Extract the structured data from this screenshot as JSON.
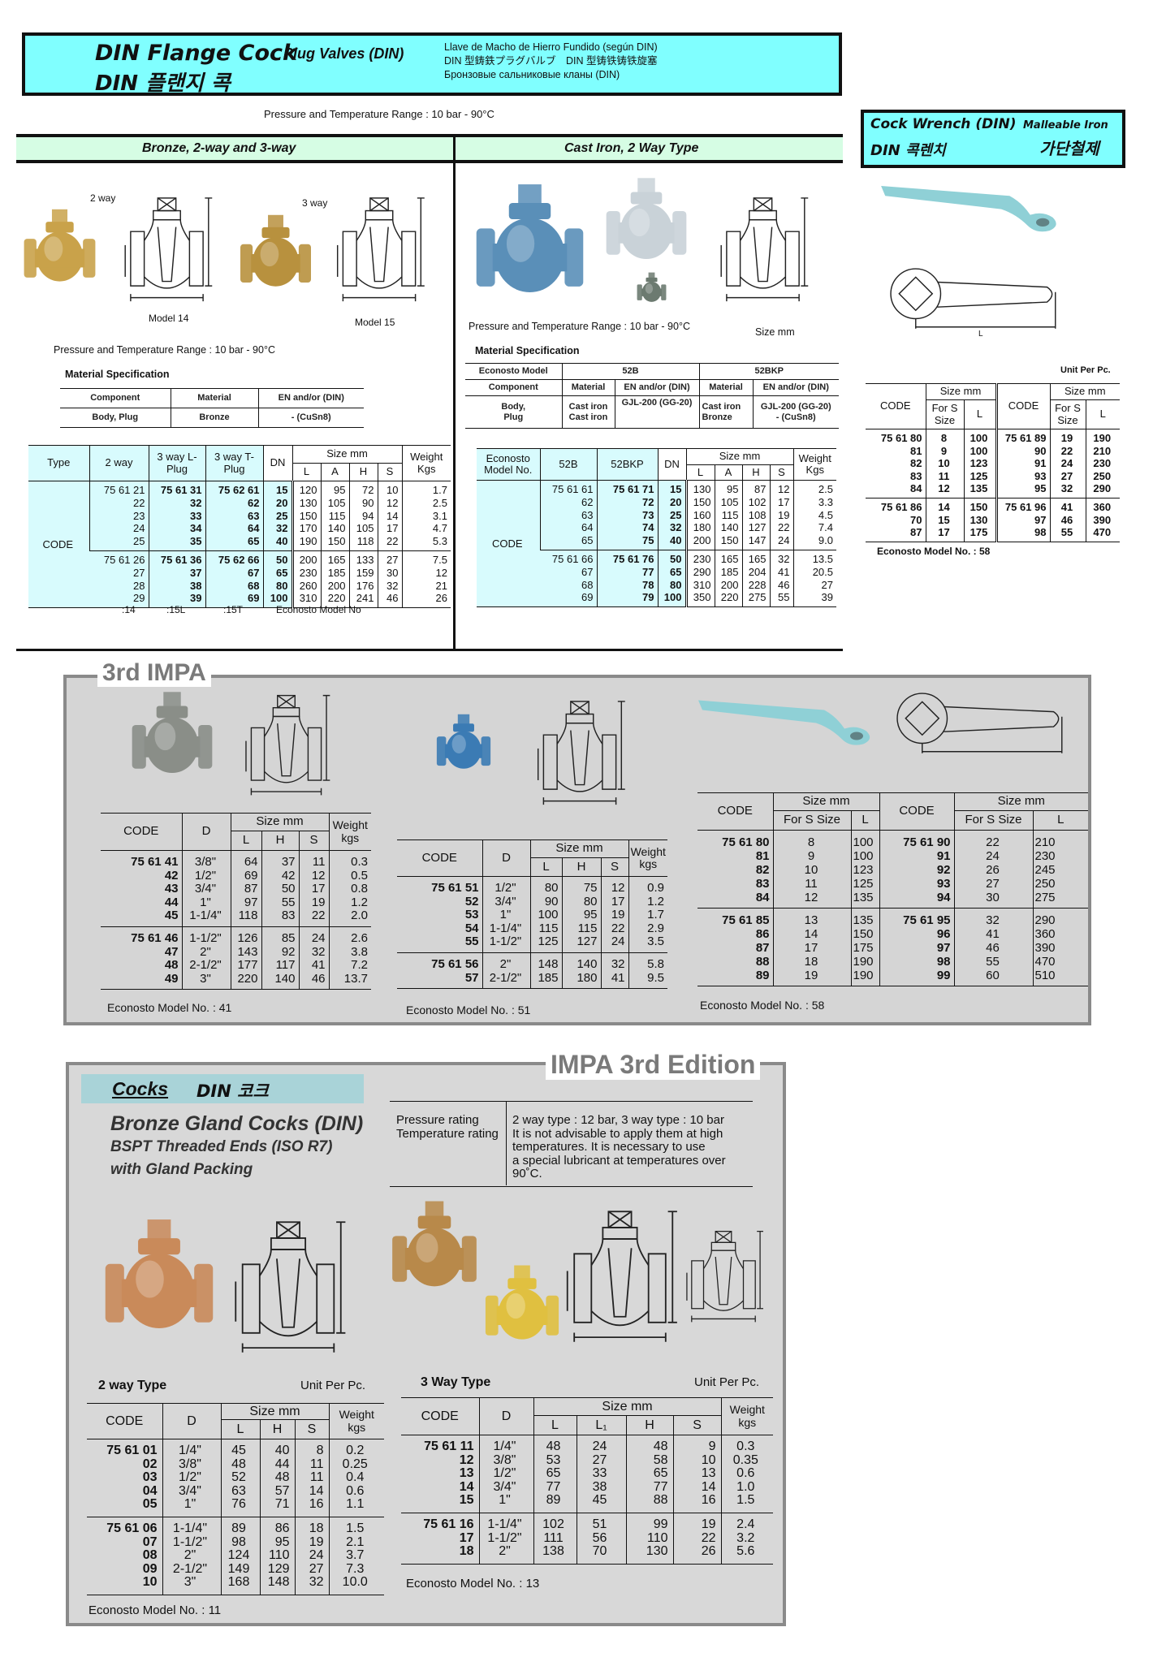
{
  "header": {
    "title_en": "DIN Flange Cock",
    "subtitle_en": "Plug Valves (DIN)",
    "title_ko": "DIN 플랜지 콕",
    "lines": [
      "Llave de Macho de Hierro Fundido (según DIN)",
      "DIN 型鋳鉄プラグバルブ　DIN 型铸铁铸铁旋塞",
      "Бронзовые сальниковые кланы (DIN)"
    ]
  },
  "pressure_range": "Pressure and Temperature Range : 10 bar - 90°C",
  "section_bar": {
    "left": "Bronze,     2-way and 3-way",
    "right": "Cast Iron,      2 Way Type"
  },
  "bronze": {
    "label_2way": "2 way",
    "label_3way": "3 way",
    "model_14": "Model 14",
    "model_15": "Model 15",
    "pressure": "Pressure and Temperature Range : 10 bar - 90°C",
    "material_title": "Material Specification",
    "material": {
      "headers": [
        "Component",
        "Material",
        "EN and/or (DIN)"
      ],
      "row": [
        "Body, Plug",
        "Bronze",
        "- (CuSn8)"
      ]
    },
    "table": {
      "headers": {
        "type": "Type",
        "two_way": "2 way",
        "l_plug": "3 way L-Plug",
        "t_plug": "3 way T-Plug",
        "dn": "DN",
        "size": "Size mm",
        "L": "L",
        "A": "A",
        "H": "H",
        "S": "S",
        "weight": "Weight Kgs"
      },
      "row_label": "CODE",
      "groups": [
        [
          [
            "75 61 21",
            "75 61 31",
            "75 62 61",
            "15",
            "120",
            "95",
            "72",
            "10",
            "1.7"
          ],
          [
            "22",
            "32",
            "62",
            "20",
            "130",
            "105",
            "90",
            "12",
            "2.5"
          ],
          [
            "23",
            "33",
            "63",
            "25",
            "150",
            "115",
            "94",
            "14",
            "3.1"
          ],
          [
            "24",
            "34",
            "64",
            "32",
            "170",
            "140",
            "105",
            "17",
            "4.7"
          ],
          [
            "25",
            "35",
            "65",
            "40",
            "190",
            "150",
            "118",
            "22",
            "5.3"
          ]
        ],
        [
          [
            "75 61 26",
            "75 61 36",
            "75 62 66",
            "50",
            "200",
            "165",
            "133",
            "27",
            "7.5"
          ],
          [
            "27",
            "37",
            "67",
            "65",
            "230",
            "185",
            "159",
            "30",
            "12"
          ],
          [
            "28",
            "38",
            "68",
            "80",
            "260",
            "200",
            "176",
            "32",
            "21"
          ],
          [
            "29",
            "39",
            "69",
            "100",
            "310",
            "220",
            "241",
            "46",
            "26"
          ]
        ]
      ],
      "footer": [
        ":14",
        ":15L",
        ":15T",
        "Econosto  Model No"
      ]
    }
  },
  "cast_iron": {
    "pressure": "Pressure and Temperature Range : 10 bar - 90°C",
    "size_note": "Size mm",
    "material_title": "Material Specification",
    "material": {
      "model_label": "Econosto Model",
      "models": [
        "52B",
        "52BKP"
      ],
      "component": "Component",
      "mat": "Material",
      "en": "EN and/or (DIN)",
      "row": {
        "component": "Body,\nPlug",
        "mat1": "Cast iron\nCast iron",
        "en1": "GJL-200 (GG-20)",
        "mat2": "Cast iron\nBronze",
        "en2": "GJL-200 (GG-20)\n- (CuSn8)"
      }
    },
    "table": {
      "headers": {
        "model": "Econosto Model  No.",
        "b": "52B",
        "bkp": "52BKP",
        "dn": "DN",
        "size": "Size mm",
        "L": "L",
        "A": "A",
        "H": "H",
        "S": "S",
        "weight": "Weight Kgs"
      },
      "row_label": "CODE",
      "groups": [
        [
          [
            "75 61 61",
            "75 61 71",
            "15",
            "130",
            "95",
            "87",
            "12",
            "2.5"
          ],
          [
            "62",
            "72",
            "20",
            "150",
            "105",
            "102",
            "17",
            "3.3"
          ],
          [
            "63",
            "73",
            "25",
            "160",
            "115",
            "108",
            "19",
            "4.5"
          ],
          [
            "64",
            "74",
            "32",
            "180",
            "140",
            "127",
            "22",
            "7.4"
          ],
          [
            "65",
            "75",
            "40",
            "200",
            "150",
            "147",
            "24",
            "9.0"
          ]
        ],
        [
          [
            "75 61 66",
            "75 61 76",
            "50",
            "230",
            "165",
            "165",
            "32",
            "13.5"
          ],
          [
            "67",
            "77",
            "65",
            "290",
            "185",
            "204",
            "41",
            "20.5"
          ],
          [
            "68",
            "78",
            "80",
            "310",
            "200",
            "228",
            "46",
            "27"
          ],
          [
            "69",
            "79",
            "100",
            "350",
            "220",
            "275",
            "55",
            "39"
          ]
        ]
      ]
    }
  },
  "wrench": {
    "title_en": "Cock Wrench (DIN)",
    "material_en": "Malleable Iron",
    "title_ko": "DIN 콕렌치",
    "material_ko": "가단철제",
    "dim_L": "L",
    "unit": "Unit Per Pc.",
    "headers": {
      "code": "CODE",
      "size": "Size mm",
      "for_s": "For S Size",
      "L": "L"
    },
    "groups": [
      [
        [
          "75 61 80",
          "8",
          "100",
          "75 61 89",
          "19",
          "190"
        ],
        [
          "81",
          "9",
          "100",
          "90",
          "22",
          "210"
        ],
        [
          "82",
          "10",
          "123",
          "91",
          "24",
          "230"
        ],
        [
          "83",
          "11",
          "125",
          "93",
          "27",
          "250"
        ],
        [
          "84",
          "12",
          "135",
          "95",
          "32",
          "290"
        ]
      ],
      [
        [
          "75 61 86",
          "14",
          "150",
          "75 61 96",
          "41",
          "360"
        ],
        [
          "70",
          "15",
          "130",
          "97",
          "46",
          "390"
        ],
        [
          "87",
          "17",
          "175",
          "98",
          "55",
          "470"
        ]
      ]
    ],
    "footer": "Econosto Model No. : 58"
  },
  "impa3": {
    "label": "3rd IMPA",
    "table_a": {
      "headers": {
        "code": "CODE",
        "d": "D",
        "size": "Size mm",
        "L": "L",
        "H": "H",
        "S": "S",
        "weight": "Weight kgs"
      },
      "groups": [
        [
          [
            "75 61 41",
            "3/8\"",
            "64",
            "37",
            "11",
            "0.3"
          ],
          [
            "42",
            "1/2\"",
            "69",
            "42",
            "12",
            "0.5"
          ],
          [
            "43",
            "3/4\"",
            "87",
            "50",
            "17",
            "0.8"
          ],
          [
            "44",
            "1\"",
            "97",
            "55",
            "19",
            "1.2"
          ],
          [
            "45",
            "1-1/4\"",
            "118",
            "83",
            "22",
            "2.0"
          ]
        ],
        [
          [
            "75 61 46",
            "1-1/2\"",
            "126",
            "85",
            "24",
            "2.6"
          ],
          [
            "47",
            "2\"",
            "143",
            "92",
            "32",
            "3.8"
          ],
          [
            "48",
            "2-1/2\"",
            "177",
            "117",
            "41",
            "7.2"
          ],
          [
            "49",
            "3\"",
            "220",
            "140",
            "46",
            "13.7"
          ]
        ]
      ],
      "footer": "Econosto Model No. : 41"
    },
    "table_b": {
      "headers": {
        "code": "CODE",
        "d": "D",
        "size": "Size mm",
        "L": "L",
        "H": "H",
        "S": "S",
        "weight": "Weight kgs"
      },
      "groups": [
        [
          [
            "75 61 51",
            "1/2\"",
            "80",
            "75",
            "12",
            "0.9"
          ],
          [
            "52",
            "3/4\"",
            "90",
            "80",
            "17",
            "1.2"
          ],
          [
            "53",
            "1\"",
            "100",
            "95",
            "19",
            "1.7"
          ],
          [
            "54",
            "1-1/4\"",
            "115",
            "115",
            "22",
            "2.9"
          ],
          [
            "55",
            "1-1/2\"",
            "125",
            "127",
            "24",
            "3.5"
          ]
        ],
        [
          [
            "75 61 56",
            "2\"",
            "148",
            "140",
            "32",
            "5.8"
          ],
          [
            "57",
            "2-1/2\"",
            "185",
            "180",
            "41",
            "9.5"
          ]
        ]
      ],
      "footer": "Econosto Model No. : 51"
    },
    "table_c": {
      "headers": {
        "code": "CODE",
        "size": "Size mm",
        "for_s": "For S Size",
        "L": "L"
      },
      "groups": [
        [
          [
            "75 61 80",
            "8",
            "100",
            "75 61 90",
            "22",
            "210"
          ],
          [
            "81",
            "9",
            "100",
            "91",
            "24",
            "230"
          ],
          [
            "82",
            "10",
            "123",
            "92",
            "26",
            "245"
          ],
          [
            "83",
            "11",
            "125",
            "93",
            "27",
            "250"
          ],
          [
            "84",
            "12",
            "135",
            "94",
            "30",
            "275"
          ]
        ],
        [
          [
            "75 61 85",
            "13",
            "135",
            "75 61 95",
            "32",
            "290"
          ],
          [
            "86",
            "14",
            "150",
            "96",
            "41",
            "360"
          ],
          [
            "87",
            "17",
            "175",
            "97",
            "46",
            "390"
          ],
          [
            "88",
            "18",
            "190",
            "98",
            "55",
            "470"
          ],
          [
            "89",
            "19",
            "190",
            "99",
            "60",
            "510"
          ]
        ]
      ],
      "footer": "Econosto Model No. : 58"
    }
  },
  "impa3_edition": {
    "label": "IMPA 3rd Edition",
    "banner": {
      "cocks": "Cocks",
      "din_ko": "DIN 코크"
    },
    "title": "Bronze Gland Cocks (DIN)",
    "subtitle1": "BSPT Threaded Ends (ISO R7)",
    "subtitle2": "with Gland Packing",
    "ratings": {
      "labels": "Pressure rating\nTemperature rating",
      "text": "2 way type : 12 bar, 3 way type : 10 bar\nIt is not advisable to apply them at high\ntemperatures.   It is necessary to use\na special lubricant at temperatures over\n90˚C."
    },
    "two_way": {
      "title": "2 way Type",
      "unit": "Unit Per Pc.",
      "headers": {
        "code": "CODE",
        "d": "D",
        "size": "Size mm",
        "L": "L",
        "H": "H",
        "S": "S",
        "weight": "Weight kgs"
      },
      "groups": [
        [
          [
            "75 61 01",
            "1/4\"",
            "45",
            "40",
            "8",
            "0.2"
          ],
          [
            "02",
            "3/8\"",
            "48",
            "44",
            "11",
            "0.25"
          ],
          [
            "03",
            "1/2\"",
            "52",
            "48",
            "11",
            "0.4"
          ],
          [
            "04",
            "3/4\"",
            "63",
            "57",
            "14",
            "0.6"
          ],
          [
            "05",
            "1\"",
            "76",
            "71",
            "16",
            "1.1"
          ]
        ],
        [
          [
            "75 61 06",
            "1-1/4\"",
            "89",
            "86",
            "18",
            "1.5"
          ],
          [
            "07",
            "1-1/2\"",
            "98",
            "95",
            "19",
            "2.1"
          ],
          [
            "08",
            "2\"",
            "124",
            "110",
            "24",
            "3.7"
          ],
          [
            "09",
            "2-1/2\"",
            "149",
            "129",
            "27",
            "7.3"
          ],
          [
            "10",
            "3\"",
            "168",
            "148",
            "32",
            "10.0"
          ]
        ]
      ],
      "footer": "Econosto Model No. : 11"
    },
    "three_way": {
      "title": "3 Way Type",
      "unit": "Unit Per Pc.",
      "headers": {
        "code": "CODE",
        "d": "D",
        "size": "Size mm",
        "L": "L",
        "L1": "L₁",
        "H": "H",
        "S": "S",
        "weight": "Weight kgs"
      },
      "groups": [
        [
          [
            "75 61 11",
            "1/4\"",
            "48",
            "24",
            "48",
            "9",
            "0.3"
          ],
          [
            "12",
            "3/8\"",
            "53",
            "27",
            "58",
            "10",
            "0.35"
          ],
          [
            "13",
            "1/2\"",
            "65",
            "33",
            "65",
            "13",
            "0.6"
          ],
          [
            "14",
            "3/4\"",
            "77",
            "38",
            "77",
            "14",
            "1.0"
          ],
          [
            "15",
            "1\"",
            "89",
            "45",
            "88",
            "16",
            "1.5"
          ]
        ],
        [
          [
            "75 61 16",
            "1-1/4\"",
            "102",
            "51",
            "99",
            "19",
            "2.4"
          ],
          [
            "17",
            "1-1/2\"",
            "111",
            "56",
            "110",
            "22",
            "3.2"
          ],
          [
            "18",
            "2\"",
            "138",
            "70",
            "130",
            "26",
            "5.6"
          ]
        ]
      ],
      "footer": "Econosto Model No. : 13"
    }
  },
  "colors": {
    "header_bg": "#80ffff",
    "section_bar": "#d6fde4",
    "table_header_cyan": "#d8fbfd",
    "panel_gray": "#d5d5d5",
    "banner": "#a9d3d8",
    "brass": "#c9a24a",
    "cast_iron_blue": "#5a8fb8"
  }
}
